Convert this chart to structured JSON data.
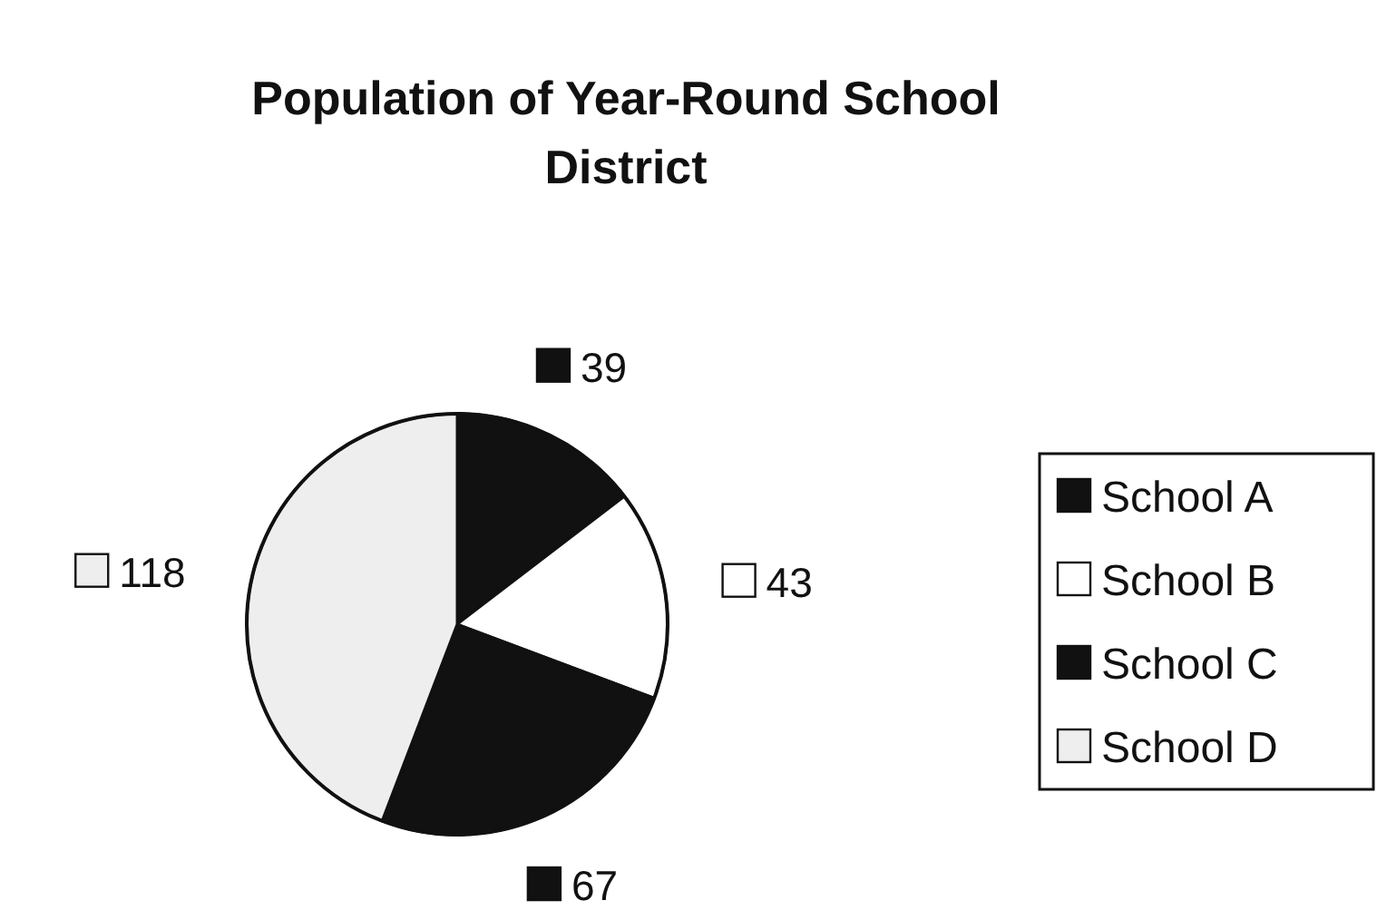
{
  "chart_data": {
    "type": "pie",
    "title": "Population of Year-Round School District",
    "categories": [
      "School A",
      "School B",
      "School C",
      "School D"
    ],
    "values": [
      39,
      43,
      67,
      118
    ],
    "colors": [
      "#111111",
      "#ffffff",
      "#111111",
      "#eeeeee"
    ],
    "data_labels": true,
    "legend": "right"
  }
}
